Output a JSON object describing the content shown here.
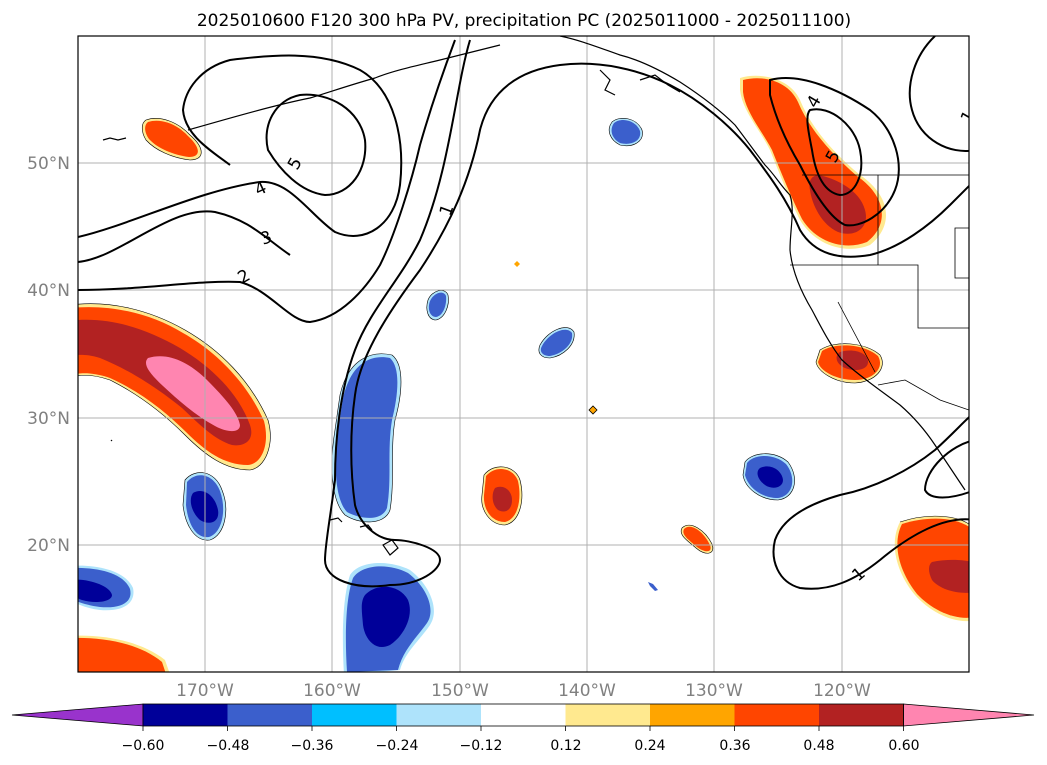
{
  "title": "2025010600 F120 300 hPa PV, precipitation PC (2025011000 - 2025011100)",
  "latitude_labels": [
    "50°N",
    "40°N",
    "30°N",
    "20°N"
  ],
  "longitude_labels": [
    "170°W",
    "160°W",
    "150°W",
    "140°W",
    "130°W",
    "120°W"
  ],
  "colorbar": {
    "tick_labels": [
      "−0.60",
      "−0.48",
      "−0.36",
      "−0.24",
      "−0.12",
      "0.12",
      "0.24",
      "0.36",
      "0.48",
      "0.60"
    ],
    "colors": [
      "#9933cc",
      "#000099",
      "#3b5fcc",
      "#00bfff",
      "#aee3fb",
      "#ffffff",
      "#ffe98f",
      "#ffa500",
      "#ff4500",
      "#b22222",
      "#ff85b0"
    ]
  },
  "contour_labels": [
    "5",
    "4",
    "3",
    "2",
    "1",
    "1",
    "4",
    "5",
    "1",
    "1"
  ],
  "colors": {
    "contour": "#000000",
    "grid": "#b0b0b0",
    "coast": "#000000"
  }
}
